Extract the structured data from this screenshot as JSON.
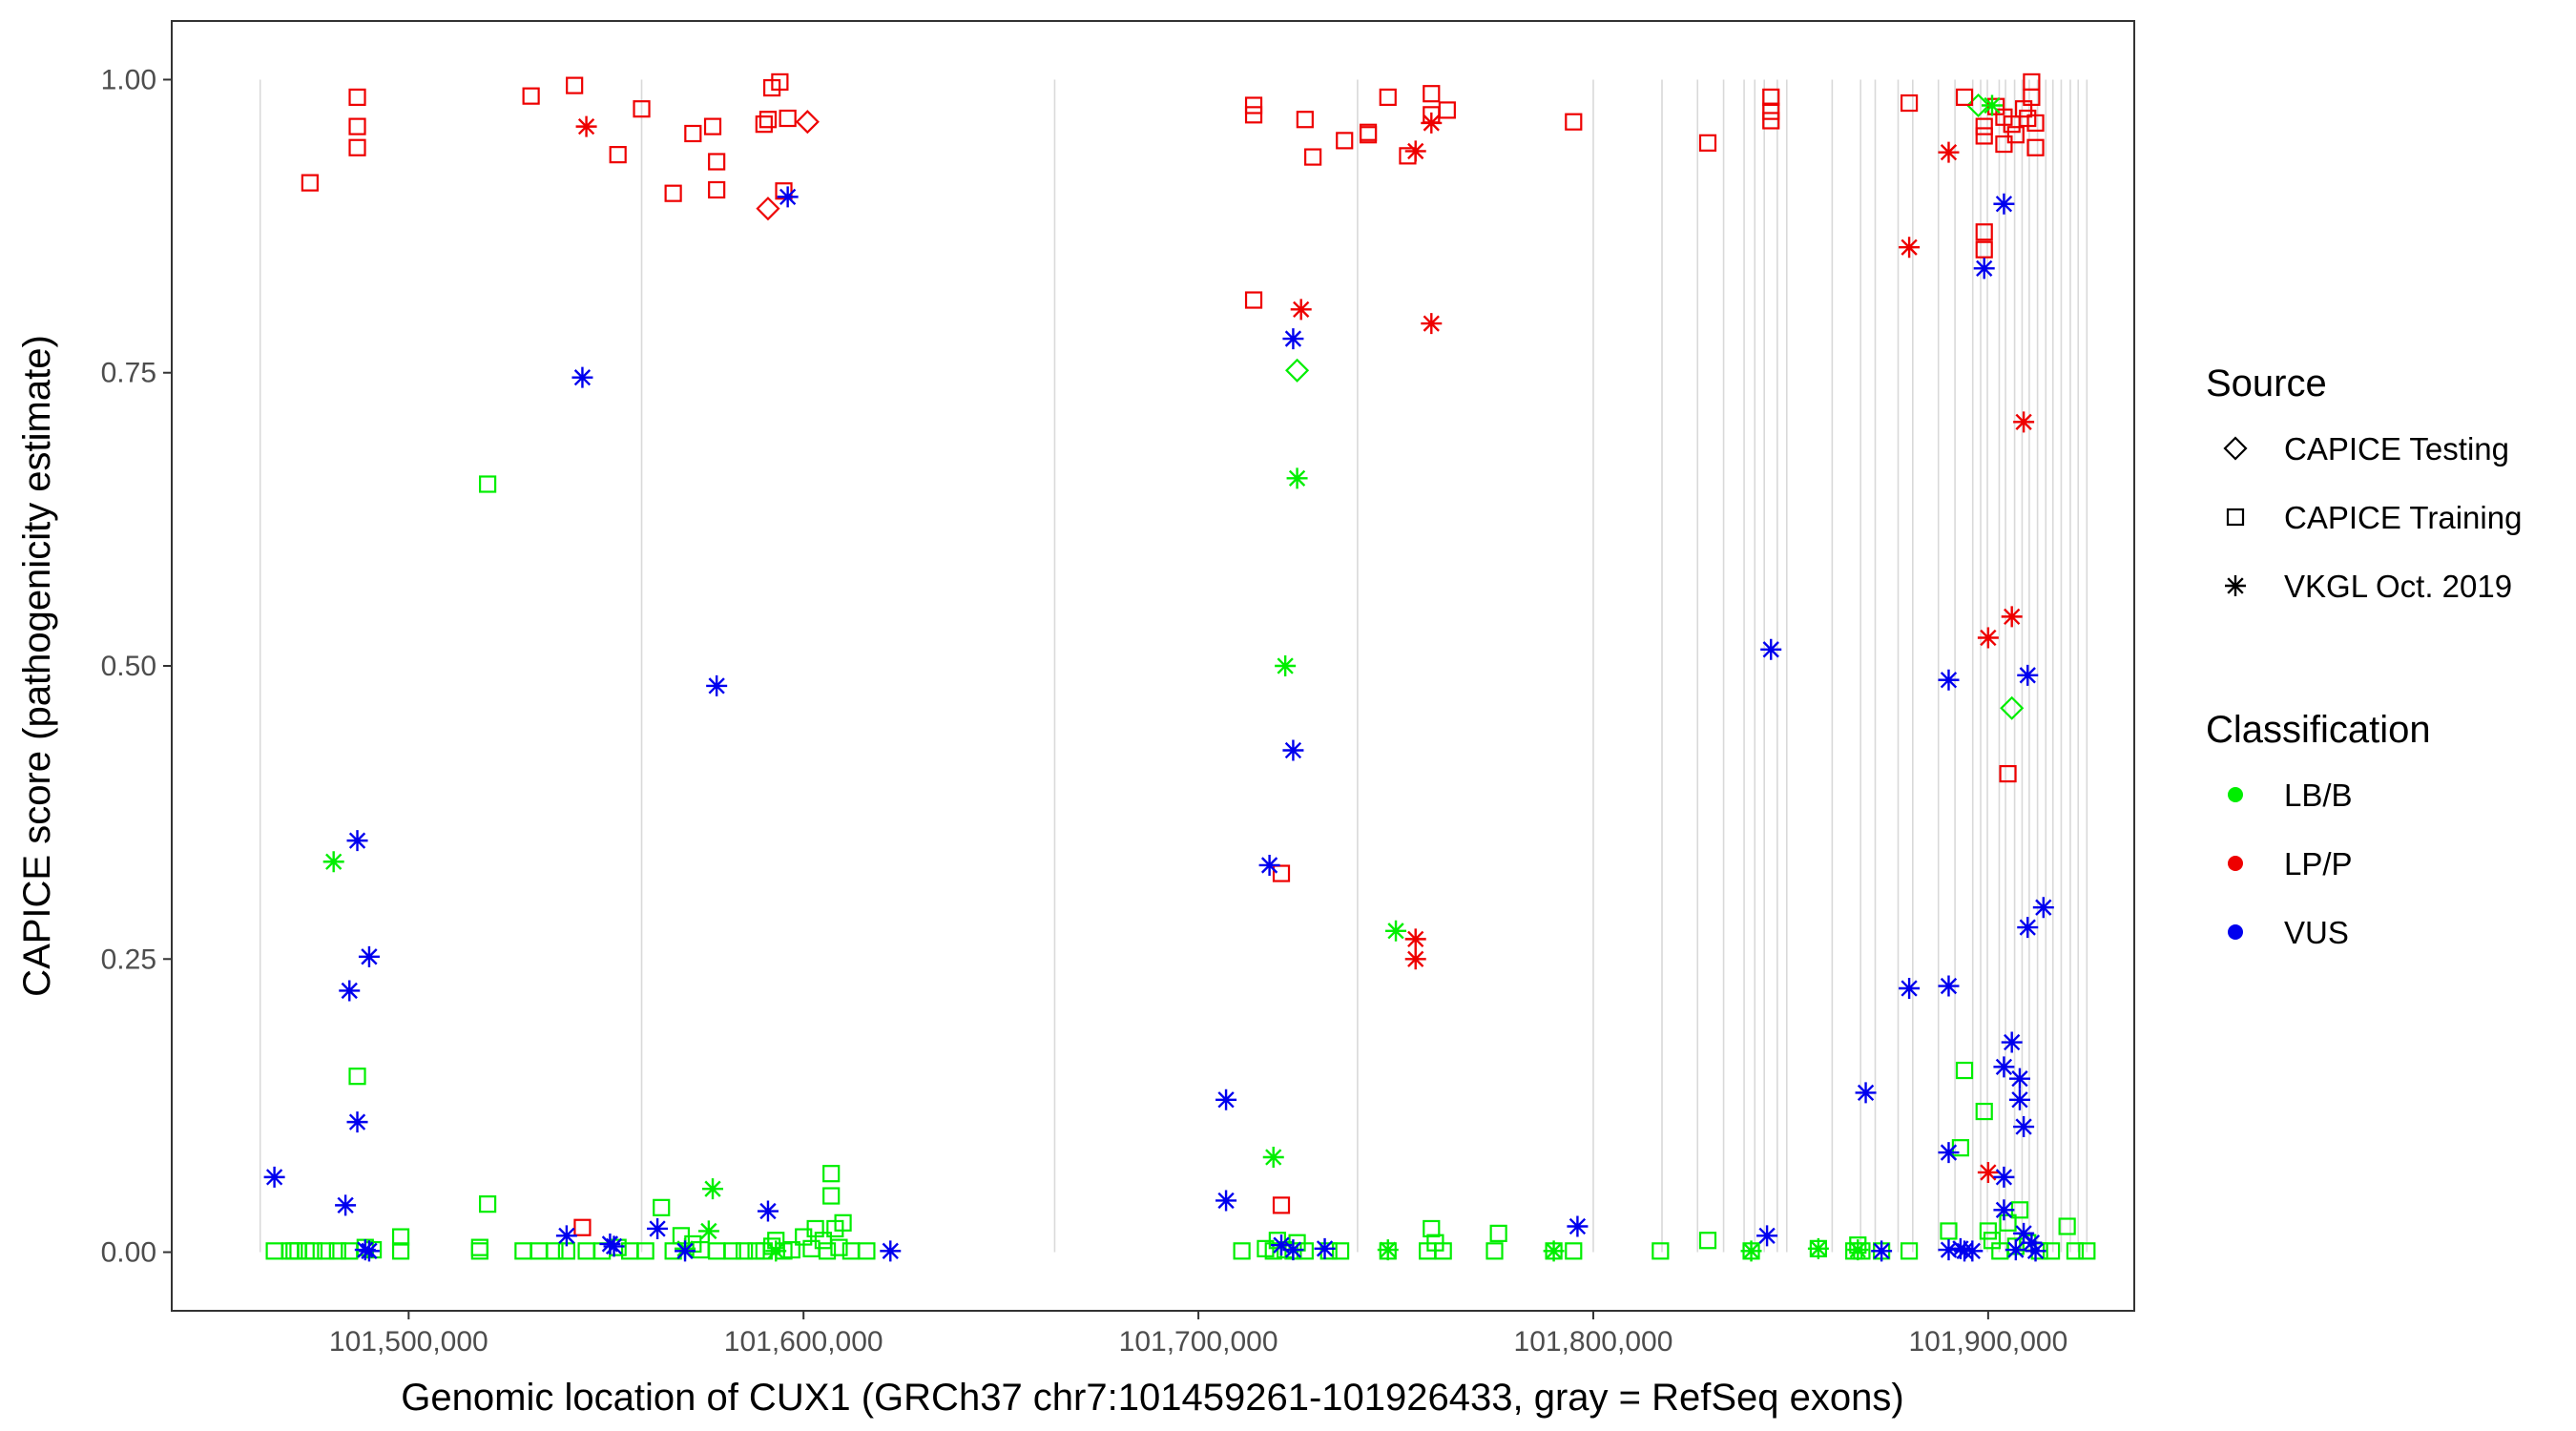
{
  "chart_data": {
    "type": "scatter",
    "xlabel": "Genomic location of CUX1 (GRCh37 chr7:101459261-101926433, gray = RefSeq exons)",
    "ylabel": "CAPICE score (pathogenicity estimate)",
    "xlim": [
      101440000,
      101937000
    ],
    "ylim": [
      -0.05,
      1.05
    ],
    "x_ticks": [
      101500000,
      101600000,
      101700000,
      101800000,
      101900000
    ],
    "x_tick_labels": [
      "101,500,000",
      "101,600,000",
      "101,700,000",
      "101,800,000",
      "101,900,000"
    ],
    "y_ticks": [
      0,
      0.25,
      0.5,
      0.75,
      1
    ],
    "y_tick_labels": [
      "0.00",
      "0.25",
      "0.50",
      "0.75",
      "1.00"
    ],
    "colors": {
      "LB/B": "#00ee00",
      "LP/P": "#ee0000",
      "VUS": "#0000ee"
    },
    "legend": {
      "source_title": "Source",
      "source_items": [
        "CAPICE Testing",
        "CAPICE Training",
        "VKGL Oct. 2019"
      ],
      "class_title": "Classification",
      "class_items": [
        "LB/B",
        "LP/P",
        "VUS"
      ]
    },
    "exon_positions": [
      101462400,
      101559000,
      101663600,
      101740300,
      101800000,
      101817400,
      101826400,
      101833000,
      101838200,
      101840900,
      101843300,
      101846600,
      101849000,
      101860500,
      101867700,
      101871400,
      101877200,
      101880900,
      101887400,
      101891600,
      101896100,
      101898100,
      101899800,
      101902800,
      101904400,
      101906700,
      101908600,
      101910400,
      101912500,
      101914600,
      101916400,
      101918500,
      101920800,
      101922800,
      101925000
    ],
    "series": [
      {
        "name": "CAPICE Testing / LP/P",
        "source": "CAPICE Testing",
        "classification": "LP/P",
        "points": [
          [
            101601000,
            0.964
          ],
          [
            101591000,
            0.89
          ]
        ]
      },
      {
        "name": "CAPICE Testing / LB/B",
        "source": "CAPICE Testing",
        "classification": "LB/B",
        "points": [
          [
            101725000,
            0.752
          ],
          [
            101906000,
            0.464
          ],
          [
            101897500,
            0.978
          ]
        ]
      },
      {
        "name": "CAPICE Training / LP/P",
        "source": "CAPICE Training",
        "classification": "LP/P",
        "points": [
          [
            101475000,
            0.912
          ],
          [
            101487000,
            0.985
          ],
          [
            101487000,
            0.96
          ],
          [
            101487000,
            0.942
          ],
          [
            101531000,
            0.986
          ],
          [
            101542000,
            0.995
          ],
          [
            101553000,
            0.936
          ],
          [
            101559000,
            0.975
          ],
          [
            101567000,
            0.903
          ],
          [
            101572000,
            0.954
          ],
          [
            101577000,
            0.96
          ],
          [
            101578000,
            0.93
          ],
          [
            101578000,
            0.906
          ],
          [
            101590000,
            0.962
          ],
          [
            101591000,
            0.966
          ],
          [
            101592000,
            0.993
          ],
          [
            101594000,
            0.998
          ],
          [
            101595000,
            0.905
          ],
          [
            101596000,
            0.967
          ],
          [
            101544000,
            0.021
          ],
          [
            101714000,
            0.978
          ],
          [
            101714000,
            0.97
          ],
          [
            101714000,
            0.812
          ],
          [
            101721000,
            0.323
          ],
          [
            101721000,
            0.04
          ],
          [
            101727000,
            0.966
          ],
          [
            101729000,
            0.934
          ],
          [
            101737000,
            0.948
          ],
          [
            101743000,
            0.955
          ],
          [
            101743000,
            0.953
          ],
          [
            101748000,
            0.985
          ],
          [
            101753000,
            0.935
          ],
          [
            101759000,
            0.988
          ],
          [
            101759000,
            0.97
          ],
          [
            101763000,
            0.974
          ],
          [
            101795000,
            0.964
          ],
          [
            101829000,
            0.946
          ],
          [
            101845000,
            0.985
          ],
          [
            101845000,
            0.973
          ],
          [
            101845000,
            0.965
          ],
          [
            101880000,
            0.98
          ],
          [
            101894000,
            0.985
          ],
          [
            101899000,
            0.96
          ],
          [
            101899000,
            0.952
          ],
          [
            101899000,
            0.87
          ],
          [
            101899000,
            0.855
          ],
          [
            101902000,
            0.977
          ],
          [
            101904000,
            0.968
          ],
          [
            101904000,
            0.945
          ],
          [
            101905000,
            0.408
          ],
          [
            101906000,
            0.962
          ],
          [
            101907000,
            0.953
          ],
          [
            101909000,
            0.975
          ],
          [
            101910000,
            0.967
          ],
          [
            101911000,
            0.998
          ],
          [
            101911000,
            0.985
          ],
          [
            101912000,
            0.942
          ],
          [
            101912000,
            0.963
          ]
        ]
      },
      {
        "name": "CAPICE Training / LB/B",
        "source": "CAPICE Training",
        "classification": "LB/B",
        "points": [
          [
            101466000,
            0.001
          ],
          [
            101470000,
            0.001
          ],
          [
            101471000,
            0.001
          ],
          [
            101472000,
            0.001
          ],
          [
            101474000,
            0.001
          ],
          [
            101476000,
            0.001
          ],
          [
            101479000,
            0.001
          ],
          [
            101482000,
            0.001
          ],
          [
            101485000,
            0.001
          ],
          [
            101487000,
            0.15
          ],
          [
            101489000,
            0.004
          ],
          [
            101491000,
            0.002
          ],
          [
            101498000,
            0.001
          ],
          [
            101498000,
            0.013
          ],
          [
            101518000,
            0.001
          ],
          [
            101518000,
            0.004
          ],
          [
            101520000,
            0.655
          ],
          [
            101520000,
            0.041
          ],
          [
            101529000,
            0.001
          ],
          [
            101533000,
            0.001
          ],
          [
            101537000,
            0.001
          ],
          [
            101540000,
            0.001
          ],
          [
            101545000,
            0.001
          ],
          [
            101549000,
            0.001
          ],
          [
            101553000,
            0.004
          ],
          [
            101556000,
            0.001
          ],
          [
            101560000,
            0.001
          ],
          [
            101564000,
            0.038
          ],
          [
            101567000,
            0.001
          ],
          [
            101569000,
            0.014
          ],
          [
            101572000,
            0.007
          ],
          [
            101574000,
            0.002
          ],
          [
            101578000,
            0.001
          ],
          [
            101582000,
            0.001
          ],
          [
            101585000,
            0.001
          ],
          [
            101588000,
            0.001
          ],
          [
            101590000,
            0.001
          ],
          [
            101592000,
            0.005
          ],
          [
            101593000,
            0.01
          ],
          [
            101595000,
            0.001
          ],
          [
            101597000,
            0.002
          ],
          [
            101600000,
            0.013
          ],
          [
            101602000,
            0.003
          ],
          [
            101603000,
            0.02
          ],
          [
            101605000,
            0.01
          ],
          [
            101606000,
            0.001
          ],
          [
            101607000,
            0.067
          ],
          [
            101607000,
            0.048
          ],
          [
            101608000,
            0.02
          ],
          [
            101609000,
            0.004
          ],
          [
            101610000,
            0.025
          ],
          [
            101612000,
            0.001
          ],
          [
            101616000,
            0.001
          ],
          [
            101711000,
            0.001
          ],
          [
            101717000,
            0.003
          ],
          [
            101719000,
            0.001
          ],
          [
            101720000,
            0.01
          ],
          [
            101722000,
            0.002
          ],
          [
            101724000,
            0.001
          ],
          [
            101725000,
            0.008
          ],
          [
            101727000,
            0.001
          ],
          [
            101733000,
            0.001
          ],
          [
            101736000,
            0.001
          ],
          [
            101748000,
            0.001
          ],
          [
            101758000,
            0.001
          ],
          [
            101759000,
            0.02
          ],
          [
            101760000,
            0.008
          ],
          [
            101762000,
            0.001
          ],
          [
            101775000,
            0.001
          ],
          [
            101776000,
            0.016
          ],
          [
            101790000,
            0.001
          ],
          [
            101795000,
            0.001
          ],
          [
            101817000,
            0.001
          ],
          [
            101829000,
            0.01
          ],
          [
            101840000,
            0.001
          ],
          [
            101857000,
            0.003
          ],
          [
            101866000,
            0.001
          ],
          [
            101867000,
            0.006
          ],
          [
            101868000,
            0.001
          ],
          [
            101873000,
            0.001
          ],
          [
            101880000,
            0.001
          ],
          [
            101890000,
            0.018
          ],
          [
            101893000,
            0.089
          ],
          [
            101894000,
            0.155
          ],
          [
            101899000,
            0.12
          ],
          [
            101900000,
            0.018
          ],
          [
            101901000,
            0.01
          ],
          [
            101903000,
            0.001
          ],
          [
            101905000,
            0.025
          ],
          [
            101907000,
            0.005
          ],
          [
            101908000,
            0.036
          ],
          [
            101910000,
            0.008
          ],
          [
            101913000,
            0.001
          ],
          [
            101916000,
            0.001
          ],
          [
            101920000,
            0.022
          ],
          [
            101922000,
            0.001
          ],
          [
            101925000,
            0.001
          ]
        ]
      },
      {
        "name": "VKGL / LP/P",
        "source": "VKGL Oct. 2019",
        "classification": "LP/P",
        "points": [
          [
            101545000,
            0.96
          ],
          [
            101726000,
            0.804
          ],
          [
            101755000,
            0.939
          ],
          [
            101755000,
            0.267
          ],
          [
            101755000,
            0.25
          ],
          [
            101759000,
            0.963
          ],
          [
            101759000,
            0.792
          ],
          [
            101880000,
            0.857
          ],
          [
            101890000,
            0.938
          ],
          [
            101900000,
            0.524
          ],
          [
            101900000,
            0.068
          ],
          [
            101906000,
            0.542
          ],
          [
            101909000,
            0.708
          ]
        ]
      },
      {
        "name": "VKGL / LB/B",
        "source": "VKGL Oct. 2019",
        "classification": "LB/B",
        "points": [
          [
            101481000,
            0.333
          ],
          [
            101570000,
            0.003
          ],
          [
            101576000,
            0.018
          ],
          [
            101577000,
            0.054
          ],
          [
            101593000,
            0.001
          ],
          [
            101719000,
            0.081
          ],
          [
            101722000,
            0.5
          ],
          [
            101725000,
            0.66
          ],
          [
            101750000,
            0.274
          ],
          [
            101748000,
            0.002
          ],
          [
            101790000,
            0.001
          ],
          [
            101840000,
            0.001
          ],
          [
            101857000,
            0.003
          ],
          [
            101867000,
            0.002
          ],
          [
            101901000,
            0.978
          ]
        ]
      },
      {
        "name": "VKGL / VUS",
        "source": "VKGL Oct. 2019",
        "classification": "VUS",
        "points": [
          [
            101466000,
            0.064
          ],
          [
            101484000,
            0.04
          ],
          [
            101485000,
            0.223
          ],
          [
            101487000,
            0.351
          ],
          [
            101487000,
            0.111
          ],
          [
            101489000,
            0.002
          ],
          [
            101490000,
            0.252
          ],
          [
            101490000,
            0.001
          ],
          [
            101540000,
            0.014
          ],
          [
            101544000,
            0.746
          ],
          [
            101551000,
            0.007
          ],
          [
            101552000,
            0.005
          ],
          [
            101563000,
            0.02
          ],
          [
            101570000,
            0.001
          ],
          [
            101578000,
            0.483
          ],
          [
            101591000,
            0.035
          ],
          [
            101596000,
            0.9
          ],
          [
            101622000,
            0.001
          ],
          [
            101707000,
            0.13
          ],
          [
            101707000,
            0.044
          ],
          [
            101718000,
            0.33
          ],
          [
            101721000,
            0.006
          ],
          [
            101724000,
            0.779
          ],
          [
            101724000,
            0.428
          ],
          [
            101724000,
            0.002
          ],
          [
            101732000,
            0.003
          ],
          [
            101796000,
            0.022
          ],
          [
            101844000,
            0.014
          ],
          [
            101845000,
            0.514
          ],
          [
            101869000,
            0.136
          ],
          [
            101873000,
            0.001
          ],
          [
            101880000,
            0.225
          ],
          [
            101890000,
            0.227
          ],
          [
            101890000,
            0.488
          ],
          [
            101890000,
            0.085
          ],
          [
            101890000,
            0.002
          ],
          [
            101893000,
            0.003
          ],
          [
            101894000,
            0.001
          ],
          [
            101896000,
            0.001
          ],
          [
            101899000,
            0.839
          ],
          [
            101904000,
            0.894
          ],
          [
            101904000,
            0.158
          ],
          [
            101904000,
            0.064
          ],
          [
            101904000,
            0.036
          ],
          [
            101906000,
            0.179
          ],
          [
            101907000,
            0.002
          ],
          [
            101908000,
            0.148
          ],
          [
            101908000,
            0.13
          ],
          [
            101909000,
            0.107
          ],
          [
            101909000,
            0.016
          ],
          [
            101910000,
            0.277
          ],
          [
            101910000,
            0.492
          ],
          [
            101911000,
            0.008
          ],
          [
            101912000,
            0.001
          ],
          [
            101914000,
            0.294
          ]
        ]
      }
    ]
  }
}
